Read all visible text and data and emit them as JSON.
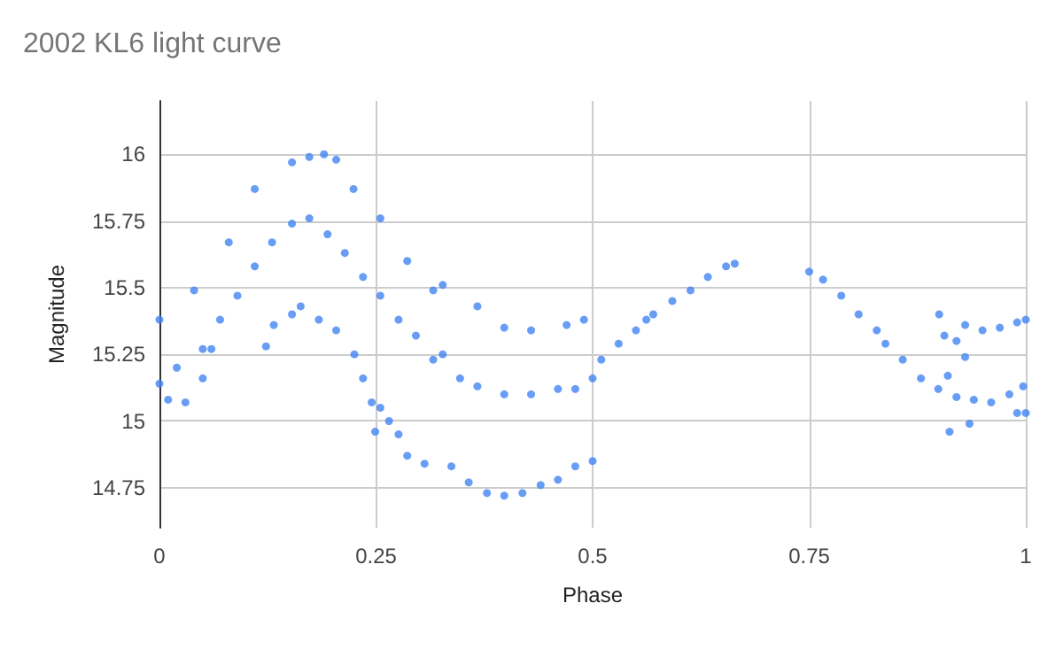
{
  "chart_data": {
    "type": "scatter",
    "title": "2002 KL6 light curve",
    "xlabel": "Phase",
    "ylabel": "Magnitude",
    "xlim": [
      0,
      1
    ],
    "xticks": [
      0,
      0.25,
      0.5,
      0.75,
      1
    ],
    "ylim": [
      14.6,
      16.2
    ],
    "yticks": [
      14.75,
      15,
      15.25,
      15.5,
      15.75,
      16
    ],
    "grid": true,
    "marker": "circle",
    "series": [
      {
        "color": "#4285f4",
        "x": [
          0,
          0.04,
          0.08,
          0.11,
          0.153,
          0.173,
          0.19,
          0.204,
          0.224,
          0.255,
          0.286,
          0.316,
          0.327,
          0.367,
          0.398,
          0.429,
          0.47,
          0.49,
          0,
          0.02,
          0.05,
          0.07,
          0.09,
          0.11,
          0.13,
          0.153,
          0.173,
          0.194,
          0.214,
          0.235,
          0.255,
          0.276,
          0.296,
          0.316,
          0.327,
          0.347,
          0.367,
          0.398,
          0.429,
          0.46,
          0.48,
          0.01,
          0.03,
          0.05,
          0.06,
          0.5,
          0.51,
          0.53,
          0.55,
          0.562,
          0.57,
          0.592,
          0.613,
          0.633,
          0.654,
          0.664,
          0.123,
          0.132,
          0.153,
          0.163,
          0.184,
          0.204,
          0.225,
          0.235,
          0.245,
          0.249,
          0.255,
          0.265,
          0.276,
          0.286,
          0.306,
          0.337,
          0.357,
          0.378,
          0.398,
          0.419,
          0.44,
          0.46,
          0.48,
          0.5,
          0.75,
          0.766,
          0.787,
          0.807,
          0.828,
          0.838,
          0.858,
          0.879,
          0.899,
          0.92,
          0.94,
          0.96,
          0.981,
          0.997,
          0.93,
          0.95,
          0.97,
          0.99,
          1,
          0.9,
          0.906,
          0.92,
          0.91,
          0.912,
          0.935,
          0.93,
          0.99,
          1
        ],
        "values": [
          15.38,
          15.49,
          15.67,
          15.87,
          15.97,
          15.99,
          16,
          15.98,
          15.87,
          15.76,
          15.6,
          15.49,
          15.51,
          15.43,
          15.35,
          15.34,
          15.36,
          15.38,
          15.14,
          15.2,
          15.27,
          15.38,
          15.47,
          15.58,
          15.67,
          15.74,
          15.76,
          15.7,
          15.63,
          15.54,
          15.47,
          15.38,
          15.32,
          15.23,
          15.25,
          15.16,
          15.13,
          15.1,
          15.1,
          15.12,
          15.12,
          15.08,
          15.07,
          15.16,
          15.27,
          15.16,
          15.23,
          15.29,
          15.34,
          15.38,
          15.4,
          15.45,
          15.49,
          15.54,
          15.58,
          15.59,
          15.28,
          15.36,
          15.4,
          15.43,
          15.38,
          15.34,
          15.25,
          15.16,
          15.07,
          14.96,
          15.05,
          15,
          14.95,
          14.87,
          14.84,
          14.83,
          14.77,
          14.73,
          14.72,
          14.73,
          14.76,
          14.78,
          14.83,
          14.85,
          15.56,
          15.53,
          15.47,
          15.4,
          15.34,
          15.29,
          15.23,
          15.16,
          15.12,
          15.09,
          15.08,
          15.07,
          15.1,
          15.13,
          15.36,
          15.34,
          15.35,
          15.37,
          15.38,
          15.4,
          15.32,
          15.3,
          15.17,
          14.96,
          14.99,
          15.24,
          15.03,
          15.03
        ]
      }
    ]
  }
}
